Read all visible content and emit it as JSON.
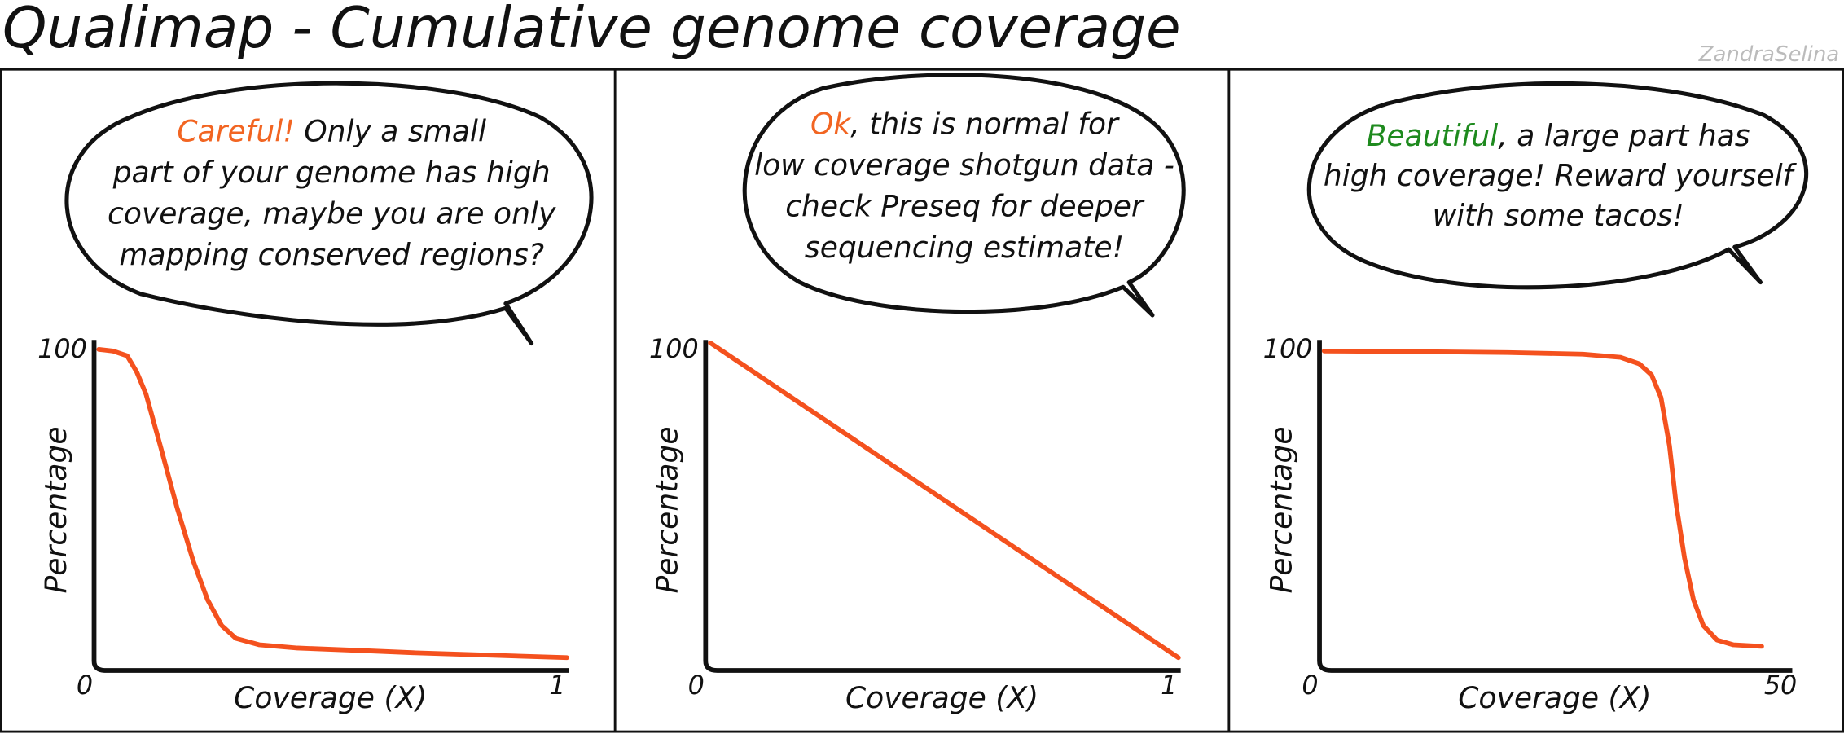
{
  "title": "Qualimap - Cumulative genome coverage",
  "credit": "ZandraSelina",
  "chart_data": [
    {
      "type": "line",
      "annotation": [
        [
          {
            "text": "Careful!",
            "color": "#f26522"
          },
          {
            "text": " Only a small"
          }
        ],
        [
          {
            "text": "part of your genome has high"
          }
        ],
        [
          {
            "text": "coverage, maybe you are only"
          }
        ],
        [
          {
            "text": "mapping conserved regions?"
          }
        ]
      ],
      "xlabel": "Coverage (X)",
      "ylabel": "Percentage",
      "xlim": [
        0,
        1
      ],
      "ylim": [
        0,
        100
      ],
      "xticks": [
        0,
        1
      ],
      "yticks": [
        100
      ],
      "series": [
        {
          "color": "#f4511e",
          "x": [
            0.01,
            0.04,
            0.07,
            0.09,
            0.11,
            0.14,
            0.175,
            0.21,
            0.24,
            0.27,
            0.3,
            0.35,
            0.43,
            0.55,
            0.68,
            0.85,
            1
          ],
          "values": [
            100,
            99.5,
            98,
            93,
            86,
            70,
            51,
            34,
            22,
            14,
            10,
            8,
            7,
            6.3,
            5.5,
            4.7,
            4
          ]
        }
      ]
    },
    {
      "type": "line",
      "annotation": [
        [
          {
            "text": "Ok",
            "color": "#f26522"
          },
          {
            "text": ", this is normal for"
          }
        ],
        [
          {
            "text": "low coverage shotgun data -"
          }
        ],
        [
          {
            "text": "check Preseq for deeper"
          }
        ],
        [
          {
            "text": "sequencing estimate!"
          }
        ]
      ],
      "xlabel": "Coverage (X)",
      "ylabel": "Percentage",
      "xlim": [
        0,
        1
      ],
      "ylim": [
        0,
        100
      ],
      "xticks": [
        0,
        1
      ],
      "yticks": [
        100
      ],
      "series": [
        {
          "color": "#f4511e",
          "x": [
            0.01,
            1
          ],
          "values": [
            102,
            4
          ]
        }
      ]
    },
    {
      "type": "line",
      "annotation": [
        [
          {
            "text": "Beautiful",
            "color": "#1e8a1e"
          },
          {
            "text": ", a large part has"
          }
        ],
        [
          {
            "text": "high coverage! Reward yourself"
          }
        ],
        [
          {
            "text": "with some tacos!"
          }
        ]
      ],
      "xlabel": "Coverage (X)",
      "ylabel": "Percentage",
      "xlim": [
        0,
        50
      ],
      "ylim": [
        0,
        100
      ],
      "xticks": [
        0,
        50
      ],
      "yticks": [
        100
      ],
      "series": [
        {
          "color": "#f4511e",
          "x": [
            0.5,
            10,
            20,
            28,
            32,
            34,
            35.3,
            36.3,
            37.2,
            37.9,
            38.8,
            39.75,
            40.8,
            42.25,
            44,
            47
          ],
          "values": [
            99.5,
            99.3,
            99,
            98.5,
            97.5,
            95.5,
            92,
            85,
            70,
            52,
            35,
            22,
            14,
            9.5,
            8,
            7.5
          ]
        }
      ]
    }
  ]
}
